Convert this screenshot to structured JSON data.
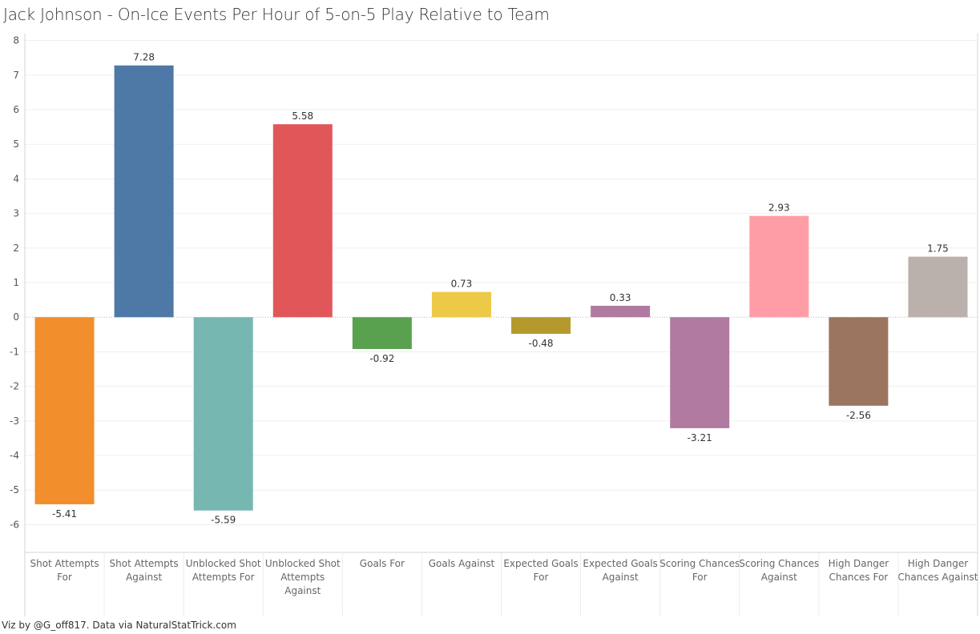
{
  "chart_data": {
    "type": "bar",
    "title": "Jack Johnson - On-Ice Events Per Hour of 5-on-5 Play Relative to Team",
    "categories": [
      [
        "Shot Attempts",
        "For"
      ],
      [
        "Shot Attempts",
        "Against"
      ],
      [
        "Unblocked Shot",
        "Attempts For"
      ],
      [
        "Unblocked Shot",
        "Attempts",
        "Against"
      ],
      [
        "Goals For"
      ],
      [
        "Goals Against"
      ],
      [
        "Expected Goals",
        "For"
      ],
      [
        "Expected Goals",
        "Against"
      ],
      [
        "Scoring Chances",
        "For"
      ],
      [
        "Scoring Chances",
        "Against"
      ],
      [
        "High Danger",
        "Chances For"
      ],
      [
        "High Danger",
        "Chances Against"
      ]
    ],
    "values": [
      -5.41,
      7.28,
      -5.59,
      5.58,
      -0.92,
      0.73,
      -0.48,
      0.33,
      -3.21,
      2.93,
      -2.56,
      1.75
    ],
    "value_labels": [
      "-5.41",
      "7.28",
      "-5.59",
      "5.58",
      "-0.92",
      "0.73",
      "-0.48",
      "0.33",
      "-3.21",
      "2.93",
      "-2.56",
      "1.75"
    ],
    "colors": [
      "#f28e2b",
      "#4e79a7",
      "#76b7b2",
      "#e15759",
      "#59a14f",
      "#edc948",
      "#b6992d",
      "#b07aa1",
      "#b07aa1",
      "#ff9da7",
      "#9c755f",
      "#bab0ac"
    ],
    "ylim": [
      -6.8,
      8.2
    ],
    "yticks": [
      8,
      7,
      6,
      5,
      4,
      3,
      2,
      1,
      0,
      -1,
      -2,
      -3,
      -4,
      -5,
      -6
    ],
    "ytick_labels": [
      "8",
      "7",
      "6",
      "5",
      "4",
      "3",
      "2",
      "1",
      "0",
      "-1",
      "-2",
      "-3",
      "-4",
      "-5",
      "-6"
    ],
    "xlabel": "",
    "ylabel": "",
    "grid": true
  },
  "footer": "Viz by @G_off817.  Data via NaturalStatTrick.com"
}
